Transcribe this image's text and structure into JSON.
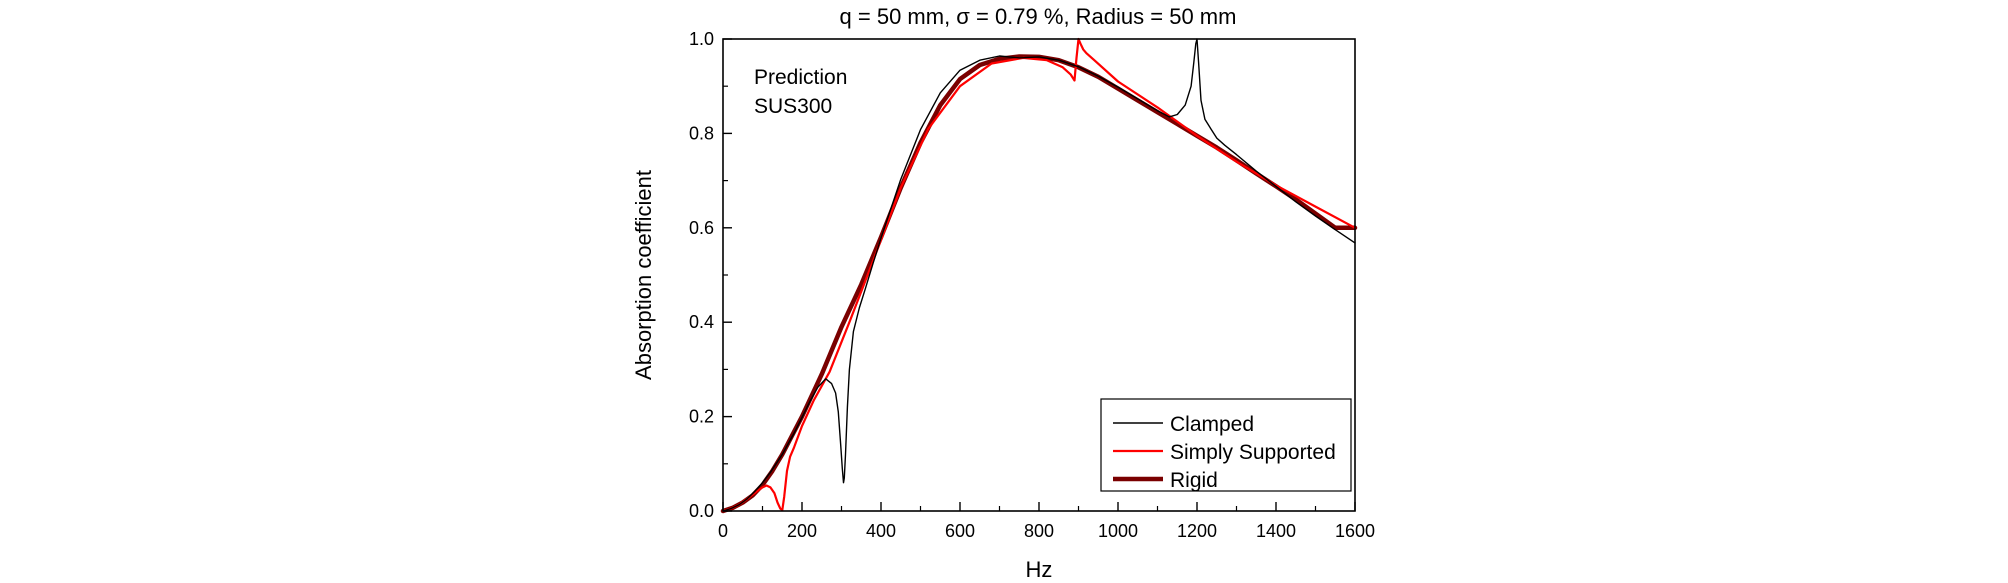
{
  "chart_data": {
    "type": "line",
    "title": "q = 50 mm, σ = 0.79 %, Radius = 50 mm",
    "xlabel": "Hz",
    "ylabel": "Absorption coefficient",
    "xlim": [
      0,
      1600
    ],
    "ylim": [
      0,
      1.0
    ],
    "xticks": [
      0,
      200,
      400,
      600,
      800,
      1000,
      1200,
      1400,
      1600
    ],
    "yticks": [
      0.0,
      0.2,
      0.4,
      0.6,
      0.8,
      1.0
    ],
    "xtick_labels": [
      "0",
      "200",
      "400",
      "600",
      "800",
      "1000",
      "1200",
      "1400",
      "1600"
    ],
    "ytick_labels": [
      "0.0",
      "0.2",
      "0.4",
      "0.6",
      "0.8",
      "1.0"
    ],
    "annotations": [
      "Prediction",
      "SUS300"
    ],
    "legend": {
      "placement": "bottom-right",
      "entries": [
        "Clamped",
        "Simply Supported",
        "Rigid"
      ]
    },
    "grid": false,
    "series": [
      {
        "name": "Clamped",
        "color": "#000000",
        "line_width": 1.4,
        "x": [
          0,
          20,
          40,
          60,
          80,
          100,
          120,
          150,
          180,
          200,
          220,
          240,
          260,
          275,
          285,
          292,
          298,
          302,
          305,
          307,
          310,
          315,
          320,
          330,
          345,
          360,
          380,
          400,
          450,
          500,
          550,
          600,
          650,
          700,
          750,
          800,
          850,
          900,
          950,
          1000,
          1050,
          1100,
          1130,
          1150,
          1170,
          1185,
          1192,
          1197,
          1200,
          1204,
          1210,
          1220,
          1235,
          1250,
          1270,
          1300,
          1350,
          1400,
          1450,
          1500,
          1550,
          1600
        ],
        "y": [
          0,
          0.005,
          0.013,
          0.025,
          0.041,
          0.06,
          0.082,
          0.12,
          0.165,
          0.198,
          0.232,
          0.262,
          0.28,
          0.27,
          0.25,
          0.21,
          0.14,
          0.09,
          0.06,
          0.07,
          0.12,
          0.22,
          0.3,
          0.38,
          0.43,
          0.47,
          0.525,
          0.578,
          0.703,
          0.808,
          0.886,
          0.934,
          0.955,
          0.964,
          0.96,
          0.962,
          0.955,
          0.941,
          0.921,
          0.898,
          0.873,
          0.848,
          0.835,
          0.84,
          0.86,
          0.9,
          0.95,
          0.99,
          1.0,
          0.95,
          0.87,
          0.83,
          0.81,
          0.79,
          0.775,
          0.755,
          0.72,
          0.688,
          0.655,
          0.625,
          0.596,
          0.568
        ]
      },
      {
        "name": "Simply Supported",
        "color": "#ff0000",
        "line_width": 2.2,
        "x": [
          0,
          20,
          40,
          60,
          80,
          100,
          110,
          120,
          130,
          138,
          145,
          150,
          155,
          162,
          170,
          180,
          200,
          230,
          270,
          320,
          380,
          450,
          520,
          600,
          680,
          760,
          820,
          860,
          880,
          890,
          895,
          900,
          905,
          912,
          920,
          940,
          1000,
          1100,
          1200,
          1300,
          1400,
          1500,
          1600
        ],
        "y": [
          0,
          0.005,
          0.013,
          0.025,
          0.038,
          0.05,
          0.054,
          0.05,
          0.038,
          0.018,
          0.005,
          0.002,
          0.03,
          0.085,
          0.115,
          0.135,
          0.18,
          0.235,
          0.295,
          0.4,
          0.53,
          0.685,
          0.81,
          0.9,
          0.948,
          0.96,
          0.955,
          0.94,
          0.925,
          0.912,
          0.96,
          1.0,
          0.99,
          0.978,
          0.97,
          0.955,
          0.91,
          0.855,
          0.795,
          0.74,
          0.69,
          0.645,
          0.6
        ]
      },
      {
        "name": "Rigid",
        "color": "#7a0000",
        "line_width": 4.5,
        "x": [
          0,
          25,
          50,
          75,
          100,
          125,
          150,
          175,
          200,
          250,
          300,
          350,
          400,
          450,
          500,
          550,
          600,
          650,
          700,
          750,
          800,
          850,
          900,
          950,
          1000,
          1050,
          1100,
          1150,
          1200,
          1250,
          1300,
          1350,
          1400,
          1450,
          1500,
          1550,
          1600
        ],
        "y": [
          0,
          0.007,
          0.018,
          0.033,
          0.055,
          0.085,
          0.12,
          0.16,
          0.2,
          0.29,
          0.39,
          0.48,
          0.58,
          0.685,
          0.78,
          0.86,
          0.915,
          0.945,
          0.958,
          0.963,
          0.962,
          0.955,
          0.94,
          0.92,
          0.895,
          0.87,
          0.845,
          0.82,
          0.795,
          0.77,
          0.743,
          0.715,
          0.688,
          0.66,
          0.63,
          0.6,
          0.6
        ]
      }
    ]
  }
}
